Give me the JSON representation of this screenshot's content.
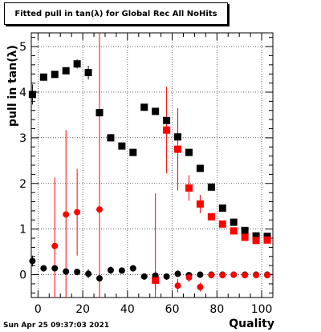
{
  "title": "Fitted pull in tan(λ) for Global Rec All NoHits",
  "timestamp": "Sun Apr 25 09:37:03 2021",
  "chart_data": {
    "type": "scatter",
    "title": "Fitted pull in tan(λ) for Global Rec All NoHits",
    "xlabel": "Quality",
    "ylabel": "pull in tan(λ)",
    "xlim": [
      -3,
      105
    ],
    "ylim": [
      -0.5,
      5.3
    ],
    "xticks": [
      0,
      20,
      40,
      60,
      80,
      100
    ],
    "yticks": [
      0,
      1,
      2,
      3,
      4,
      5
    ],
    "grid": true,
    "legend": "none",
    "series": [
      {
        "marker": "square",
        "color": "#000000",
        "points": [
          {
            "x": -2.5,
            "y": 3.95,
            "yerr": 0.22
          },
          {
            "x": 2.5,
            "y": 4.33,
            "yerr": 0.08
          },
          {
            "x": 7.5,
            "y": 4.39,
            "yerr": 0.07
          },
          {
            "x": 12.5,
            "y": 4.47,
            "yerr": 0.07
          },
          {
            "x": 17.5,
            "y": 4.62,
            "yerr": 0.1
          },
          {
            "x": 22.5,
            "y": 4.43,
            "yerr": 0.15
          },
          {
            "x": 27.5,
            "y": 3.55,
            "yerr": 0.07
          },
          {
            "x": 32.5,
            "y": 3.0,
            "yerr": 0.08
          },
          {
            "x": 37.5,
            "y": 2.82,
            "yerr": 0.07
          },
          {
            "x": 42.5,
            "y": 2.68,
            "yerr": 0.06
          },
          {
            "x": 47.5,
            "y": 3.67,
            "yerr": 0.03
          },
          {
            "x": 52.5,
            "y": 3.58,
            "yerr": 0.03
          },
          {
            "x": 57.5,
            "y": 3.38,
            "yerr": 0.03
          },
          {
            "x": 62.5,
            "y": 3.02,
            "yerr": 0.03
          },
          {
            "x": 67.5,
            "y": 2.68,
            "yerr": 0.03
          },
          {
            "x": 72.5,
            "y": 2.33,
            "yerr": 0.03
          },
          {
            "x": 77.5,
            "y": 1.92,
            "yerr": 0.03
          },
          {
            "x": 82.5,
            "y": 1.46,
            "yerr": 0.03
          },
          {
            "x": 87.5,
            "y": 1.15,
            "yerr": 0.03
          },
          {
            "x": 92.5,
            "y": 0.97,
            "yerr": 0.03
          },
          {
            "x": 97.5,
            "y": 0.85,
            "yerr": 0.03
          },
          {
            "x": 102.5,
            "y": 0.84,
            "yerr": 0.03
          }
        ]
      },
      {
        "marker": "square",
        "color": "#ff0000",
        "points": [
          {
            "x": 52.5,
            "y": -0.12,
            "yerr": 1.9
          },
          {
            "x": 57.5,
            "y": 3.17,
            "yerr": 0.95
          },
          {
            "x": 62.5,
            "y": 2.75,
            "yerr": 0.9
          },
          {
            "x": 67.5,
            "y": 1.9,
            "yerr": 0.28
          },
          {
            "x": 72.5,
            "y": 1.55,
            "yerr": 0.2
          },
          {
            "x": 77.5,
            "y": 1.27,
            "yerr": 0.07
          },
          {
            "x": 82.5,
            "y": 1.11,
            "yerr": 0.05
          },
          {
            "x": 87.5,
            "y": 0.96,
            "yerr": 0.04
          },
          {
            "x": 92.5,
            "y": 0.82,
            "yerr": 0.04
          },
          {
            "x": 97.5,
            "y": 0.75,
            "yerr": 0.05
          },
          {
            "x": 102.5,
            "y": 0.76,
            "yerr": 0.05
          }
        ]
      },
      {
        "marker": "circle",
        "color": "#000000",
        "points": [
          {
            "x": -2.5,
            "y": 0.3,
            "yerr": 0.12
          },
          {
            "x": 2.5,
            "y": 0.14,
            "yerr": 0.06
          },
          {
            "x": 7.5,
            "y": 0.14,
            "yerr": 0.05
          },
          {
            "x": 12.5,
            "y": 0.07,
            "yerr": 0.06
          },
          {
            "x": 17.5,
            "y": 0.06,
            "yerr": 0.07
          },
          {
            "x": 22.5,
            "y": 0.02,
            "yerr": 0.1
          },
          {
            "x": 27.5,
            "y": -0.08,
            "yerr": 0.15
          },
          {
            "x": 32.5,
            "y": 0.1,
            "yerr": 0.08
          },
          {
            "x": 37.5,
            "y": 0.09,
            "yerr": 0.07
          },
          {
            "x": 42.5,
            "y": 0.14,
            "yerr": 0.07
          },
          {
            "x": 47.5,
            "y": -0.04,
            "yerr": 0.04
          },
          {
            "x": 52.5,
            "y": -0.02,
            "yerr": 0.04
          },
          {
            "x": 57.5,
            "y": -0.04,
            "yerr": 0.04
          },
          {
            "x": 62.5,
            "y": 0.02,
            "yerr": 0.06
          },
          {
            "x": 67.5,
            "y": -0.01,
            "yerr": 0.05
          },
          {
            "x": 72.5,
            "y": 0.0,
            "yerr": 0.04
          },
          {
            "x": 77.5,
            "y": 0.0,
            "yerr": 0.03
          },
          {
            "x": 82.5,
            "y": 0.0,
            "yerr": 0.02
          },
          {
            "x": 87.5,
            "y": 0.0,
            "yerr": 0.02
          },
          {
            "x": 92.5,
            "y": 0.0,
            "yerr": 0.02
          },
          {
            "x": 97.5,
            "y": 0.0,
            "yerr": 0.02
          },
          {
            "x": 102.5,
            "y": 0.0,
            "yerr": 0.02
          }
        ]
      },
      {
        "marker": "circle",
        "color": "#ff0000",
        "points": [
          {
            "x": 7.5,
            "y": 0.63,
            "yerr": 1.5
          },
          {
            "x": 12.5,
            "y": 1.32,
            "yerr": 1.85
          },
          {
            "x": 17.5,
            "y": 1.37,
            "yerr": 0.95
          },
          {
            "x": 27.5,
            "y": 1.43,
            "yerr": 4.0
          },
          {
            "x": 52.5,
            "y": -0.12,
            "yerr": 0.2
          },
          {
            "x": 62.5,
            "y": -0.24,
            "yerr": 0.15
          },
          {
            "x": 67.5,
            "y": -0.06,
            "yerr": 0.1
          },
          {
            "x": 72.5,
            "y": -0.27,
            "yerr": 0.1
          },
          {
            "x": 77.5,
            "y": -0.01,
            "yerr": 0.04
          },
          {
            "x": 82.5,
            "y": -0.01,
            "yerr": 0.03
          },
          {
            "x": 87.5,
            "y": 0.0,
            "yerr": 0.03
          },
          {
            "x": 92.5,
            "y": -0.01,
            "yerr": 0.03
          },
          {
            "x": 97.5,
            "y": -0.01,
            "yerr": 0.03
          },
          {
            "x": 102.5,
            "y": -0.01,
            "yerr": 0.03
          }
        ]
      }
    ]
  }
}
